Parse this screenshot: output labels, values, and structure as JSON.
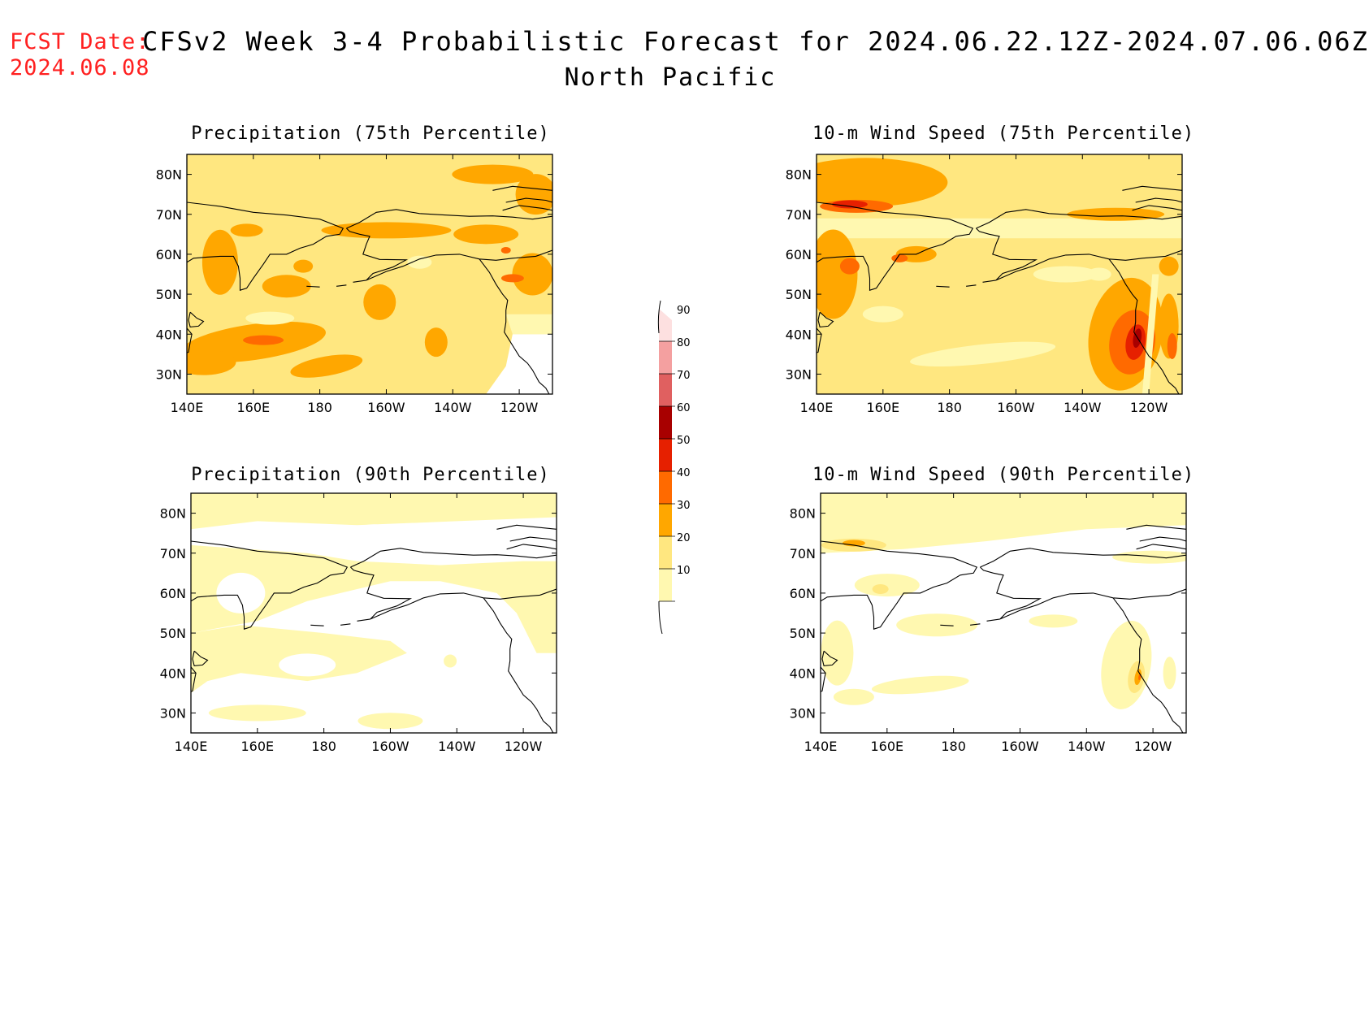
{
  "header": {
    "fcst_label": "FCST Date:",
    "fcst_date": "2024.06.08",
    "title": "CFSv2 Week 3-4 Probabilistic Forecast for 2024.06.22.12Z-2024.07.06.06Z",
    "region": "North Pacific"
  },
  "panels": [
    {
      "id": "precip75",
      "title": "Precipitation (75th Percentile)"
    },
    {
      "id": "wind75",
      "title": "10-m Wind Speed (75th Percentile)"
    },
    {
      "id": "precip90",
      "title": "Precipitation (90th Percentile)"
    },
    {
      "id": "wind90",
      "title": "10-m Wind Speed (90th Percentile)"
    }
  ],
  "axes": {
    "lon_ticks": [
      "140E",
      "160E",
      "180",
      "160W",
      "140W",
      "120W"
    ],
    "lat_ticks": [
      "80N",
      "70N",
      "60N",
      "50N",
      "40N",
      "30N"
    ],
    "lon_range": [
      140,
      250
    ],
    "lat_range": [
      25,
      85
    ]
  },
  "colorbar": {
    "levels": [
      "10",
      "20",
      "30",
      "40",
      "50",
      "60",
      "70",
      "80",
      "90"
    ],
    "colors": [
      "#fff8b0",
      "#ffe780",
      "#ffa700",
      "#ff6a00",
      "#e62000",
      "#a80000",
      "#e06060",
      "#f4a0a0",
      "#fde0e0"
    ]
  },
  "colors": {
    "c10": "#fff8b0",
    "c20": "#ffe780",
    "c30": "#ffa700",
    "c40": "#ff6a00",
    "c50": "#e62000",
    "c60": "#a80000"
  }
}
